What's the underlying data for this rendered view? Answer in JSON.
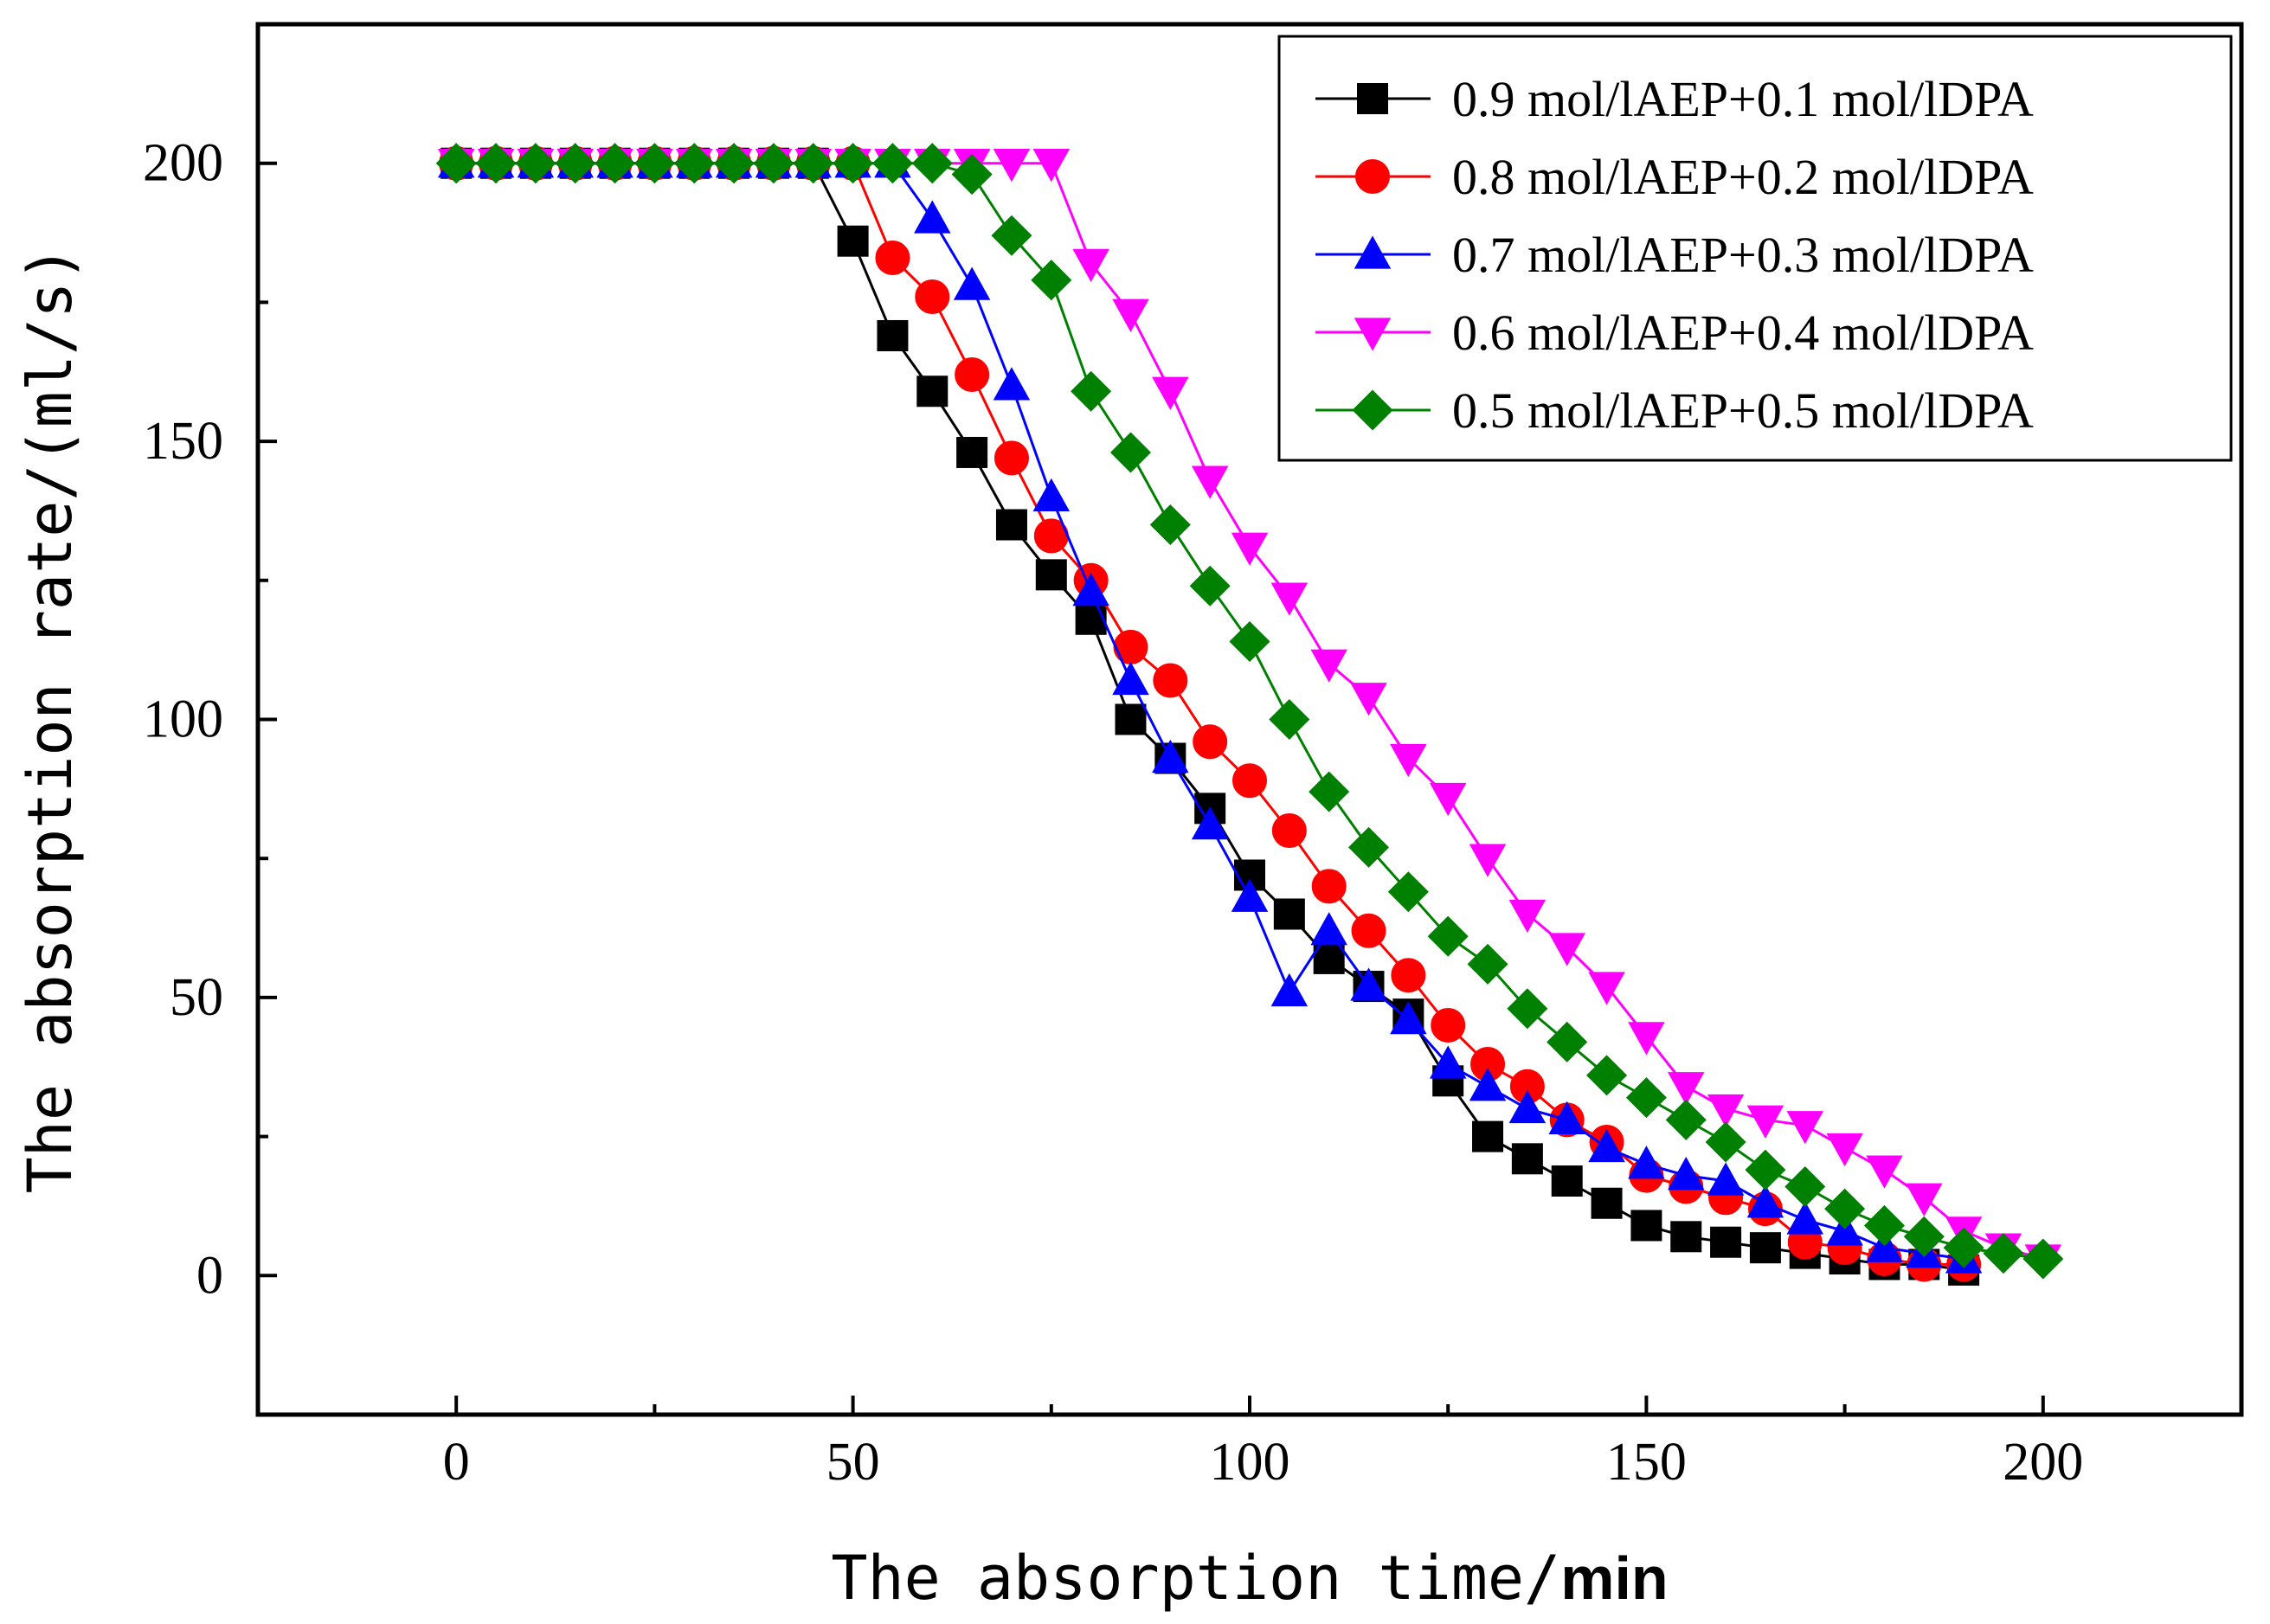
{
  "chart_data": {
    "type": "line",
    "title": "",
    "xlabel_prefix": "The absorption time/",
    "xlabel_unit": "min",
    "ylabel": "The absorption rate/(ml/s)",
    "xlim": [
      -25,
      225
    ],
    "ylim": [
      -25,
      225
    ],
    "xticks": [
      0,
      50,
      100,
      150,
      200
    ],
    "yticks": [
      0,
      50,
      100,
      150,
      200
    ],
    "legend_position": "top-right",
    "series": [
      {
        "name": "0.9 mol/lAEP+0.1 mol/lDPA",
        "color": "#000000",
        "marker": "square",
        "x": [
          0,
          5,
          10,
          15,
          20,
          25,
          30,
          35,
          40,
          45,
          50,
          55,
          60,
          65,
          70,
          75,
          80,
          85,
          90,
          95,
          100,
          105,
          110,
          115,
          120,
          125,
          130,
          135,
          140,
          145,
          150,
          155,
          160,
          165,
          170,
          175,
          180,
          185,
          190
        ],
        "y": [
          200,
          200,
          200,
          200,
          200,
          200,
          200,
          200,
          200,
          200,
          186,
          169,
          159,
          148,
          135,
          126,
          118,
          100,
          93,
          84,
          72,
          65,
          57,
          52,
          47,
          35,
          25,
          21,
          17,
          13,
          9,
          7,
          6,
          5,
          4,
          3,
          2,
          2,
          1
        ]
      },
      {
        "name": "0.8 mol/lAEP+0.2 mol/lDPA",
        "color": "#ff0000",
        "marker": "circle",
        "x": [
          0,
          5,
          10,
          15,
          20,
          25,
          30,
          35,
          40,
          45,
          50,
          55,
          60,
          65,
          70,
          75,
          80,
          85,
          90,
          95,
          100,
          105,
          110,
          115,
          120,
          125,
          130,
          135,
          140,
          145,
          150,
          155,
          160,
          165,
          170,
          175,
          180,
          185,
          190
        ],
        "y": [
          200,
          200,
          200,
          200,
          200,
          200,
          200,
          200,
          200,
          200,
          200,
          183,
          176,
          162,
          147,
          133,
          125,
          113,
          107,
          96,
          89,
          80,
          70,
          62,
          54,
          45,
          38,
          34,
          28,
          24,
          18,
          16,
          14,
          12,
          6,
          5,
          3,
          2,
          2
        ]
      },
      {
        "name": "0.7 mol/lAEP+0.3 mol/lDPA",
        "color": "#0000ff",
        "marker": "triangle-up",
        "x": [
          0,
          5,
          10,
          15,
          20,
          25,
          30,
          35,
          40,
          45,
          50,
          55,
          60,
          65,
          70,
          75,
          80,
          85,
          90,
          95,
          100,
          105,
          110,
          115,
          120,
          125,
          130,
          135,
          140,
          145,
          150,
          155,
          160,
          165,
          170,
          175,
          180,
          185,
          190
        ],
        "y": [
          200,
          200,
          200,
          200,
          200,
          200,
          200,
          200,
          200,
          200,
          200,
          200,
          190,
          178,
          160,
          140,
          123,
          107,
          93,
          81,
          68,
          51,
          62,
          52,
          46,
          38,
          34,
          30,
          28,
          23,
          20,
          18,
          17,
          13,
          10,
          8,
          5,
          4,
          3
        ]
      },
      {
        "name": "0.6 mol/lAEP+0.4 mol/lDPA",
        "color": "#ff00ff",
        "marker": "triangle-down",
        "x": [
          0,
          5,
          10,
          15,
          20,
          25,
          30,
          35,
          40,
          45,
          50,
          55,
          60,
          65,
          70,
          75,
          80,
          85,
          90,
          95,
          100,
          105,
          110,
          115,
          120,
          125,
          130,
          135,
          140,
          145,
          150,
          155,
          160,
          165,
          170,
          175,
          180,
          185,
          190,
          195,
          200
        ],
        "y": [
          200,
          200,
          200,
          200,
          200,
          200,
          200,
          200,
          200,
          200,
          200,
          200,
          200,
          200,
          200,
          200,
          182,
          173,
          159,
          143,
          131,
          122,
          110,
          104,
          93,
          86,
          75,
          65,
          59,
          52,
          43,
          34,
          30,
          28,
          27,
          23,
          19,
          14,
          8,
          5,
          3
        ]
      },
      {
        "name": "0.5 mol/lAEP+0.5 mol/lDPA",
        "color": "#008000",
        "marker": "diamond",
        "x": [
          0,
          5,
          10,
          15,
          20,
          25,
          30,
          35,
          40,
          45,
          50,
          55,
          60,
          65,
          70,
          75,
          80,
          85,
          90,
          95,
          100,
          105,
          110,
          115,
          120,
          125,
          130,
          135,
          140,
          145,
          150,
          155,
          160,
          165,
          170,
          175,
          180,
          185,
          190,
          195,
          200
        ],
        "y": [
          200,
          200,
          200,
          200,
          200,
          200,
          200,
          200,
          200,
          200,
          200,
          200,
          200,
          198,
          187,
          179,
          159,
          148,
          135,
          124,
          114,
          100,
          87,
          77,
          69,
          61,
          56,
          48,
          42,
          36,
          32,
          28,
          24,
          19,
          16,
          12,
          9,
          7,
          5,
          4,
          3
        ]
      }
    ]
  }
}
